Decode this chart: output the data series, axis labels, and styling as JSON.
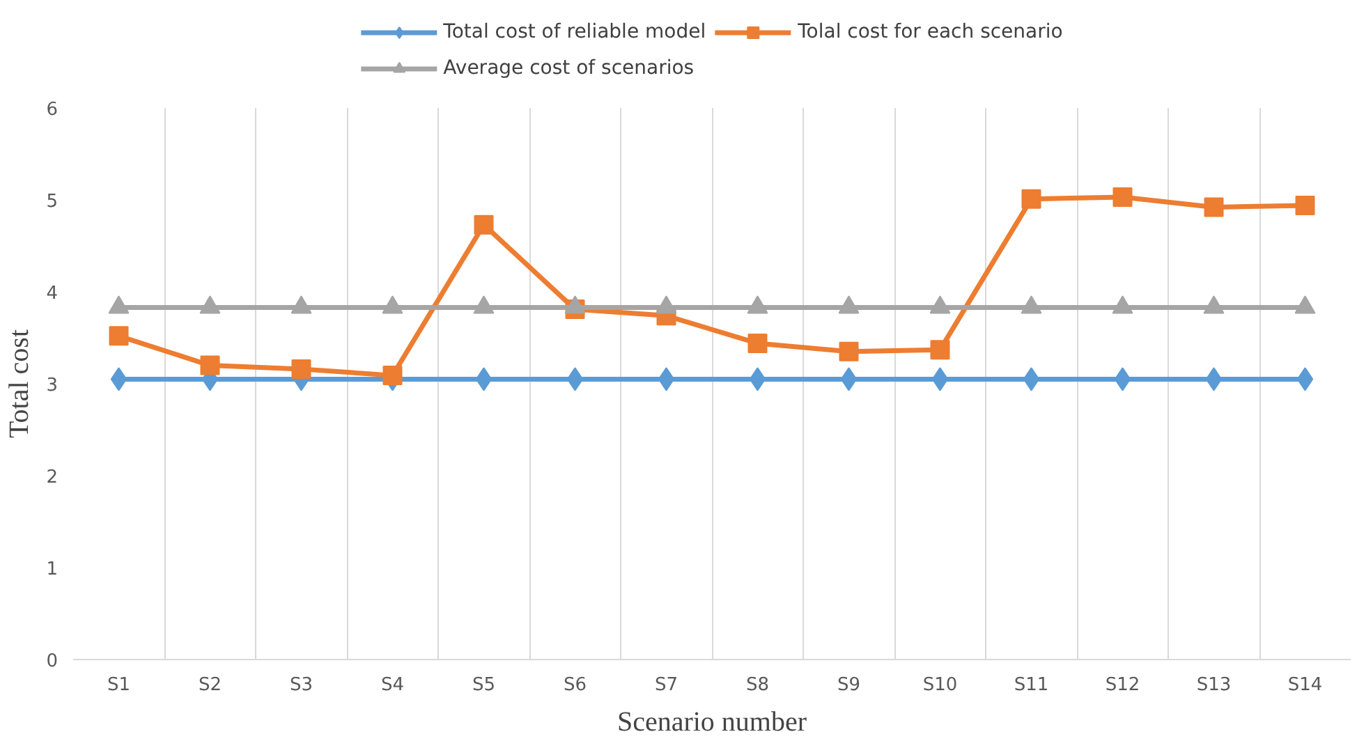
{
  "chart_data": {
    "type": "line",
    "xlabel": "Scenario number",
    "ylabel": "Total cost",
    "categories": [
      "S1",
      "S2",
      "S3",
      "S4",
      "S5",
      "S6",
      "S7",
      "S8",
      "S9",
      "S10",
      "S11",
      "S12",
      "S13",
      "S14"
    ],
    "series": [
      {
        "name": "Total cost of reliable model",
        "color": "#5b9bd5",
        "marker": "diamond",
        "values": [
          3.05,
          3.05,
          3.05,
          3.05,
          3.05,
          3.05,
          3.05,
          3.05,
          3.05,
          3.05,
          3.05,
          3.05,
          3.05,
          3.05
        ]
      },
      {
        "name": "Tolal cost for each scenario",
        "color": "#ed7d31",
        "marker": "square",
        "values": [
          3.52,
          3.2,
          3.16,
          3.09,
          4.73,
          3.81,
          3.74,
          3.44,
          3.35,
          3.37,
          5.01,
          5.03,
          4.92,
          4.94
        ]
      },
      {
        "name": "Average cost of scenarios",
        "color": "#a5a5a5",
        "marker": "triangle",
        "values": [
          3.83,
          3.83,
          3.83,
          3.83,
          3.83,
          3.83,
          3.83,
          3.83,
          3.83,
          3.83,
          3.83,
          3.83,
          3.83,
          3.83
        ]
      }
    ],
    "ylim": [
      0,
      6
    ],
    "yticks": [
      0,
      1,
      2,
      3,
      4,
      5,
      6
    ],
    "grid": "x",
    "legend": "top",
    "line_style": "solid"
  }
}
